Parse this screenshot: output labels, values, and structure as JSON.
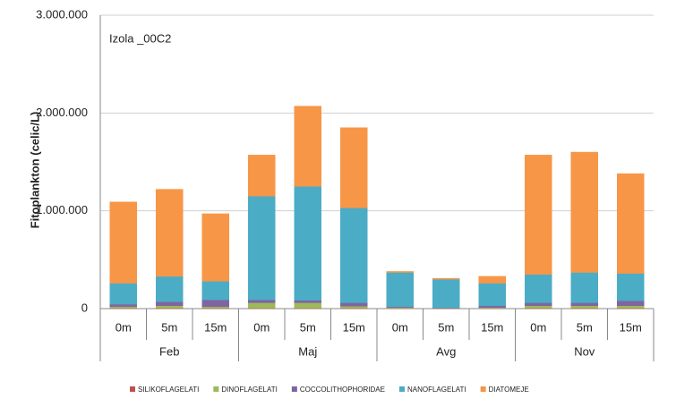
{
  "chart_data": {
    "type": "stacked-bar",
    "annotation": "Izola _00C2",
    "y_label": "Fitoplankton (celic/L)",
    "categories": [
      "0m",
      "5m",
      "15m",
      "0m",
      "5m",
      "15m",
      "0m",
      "5m",
      "15m",
      "0m",
      "5m",
      "15m"
    ],
    "groups": [
      "Feb",
      "Maj",
      "Avg",
      "Nov"
    ],
    "ylim": [
      0,
      3000000
    ],
    "yticks": [
      0,
      {
        "value": 1000000,
        "label": "1.000.000"
      },
      {
        "value": 2000000,
        "label": "2.000.000"
      },
      {
        "value": 3000000,
        "label": "3.000.000"
      }
    ],
    "grid": true,
    "legend": "bottom",
    "series": [
      {
        "name": "SILIKOFLAGELATI",
        "color": "#c0504d",
        "values": [
          5000,
          5000,
          5000,
          5000,
          5000,
          5000,
          2000,
          2000,
          2000,
          5000,
          5000,
          5000
        ]
      },
      {
        "name": "DINOFLAGELATI",
        "color": "#9bbb59",
        "values": [
          15000,
          25000,
          15000,
          55000,
          55000,
          20000,
          8000,
          3000,
          8000,
          25000,
          25000,
          25000
        ]
      },
      {
        "name": "COCCOLITHOPHORIDAE",
        "color": "#8064a2",
        "values": [
          25000,
          40000,
          70000,
          30000,
          25000,
          35000,
          10000,
          5000,
          20000,
          30000,
          30000,
          50000
        ]
      },
      {
        "name": "NANOFLAGELATI",
        "color": "#4bacc6",
        "values": [
          215000,
          260000,
          190000,
          1060000,
          1165000,
          970000,
          350000,
          290000,
          230000,
          290000,
          310000,
          280000
        ]
      },
      {
        "name": "DIATOMEJE",
        "color": "#f79646",
        "values": [
          830000,
          890000,
          690000,
          420000,
          820000,
          820000,
          10000,
          10000,
          70000,
          1220000,
          1230000,
          1020000
        ]
      }
    ]
  }
}
